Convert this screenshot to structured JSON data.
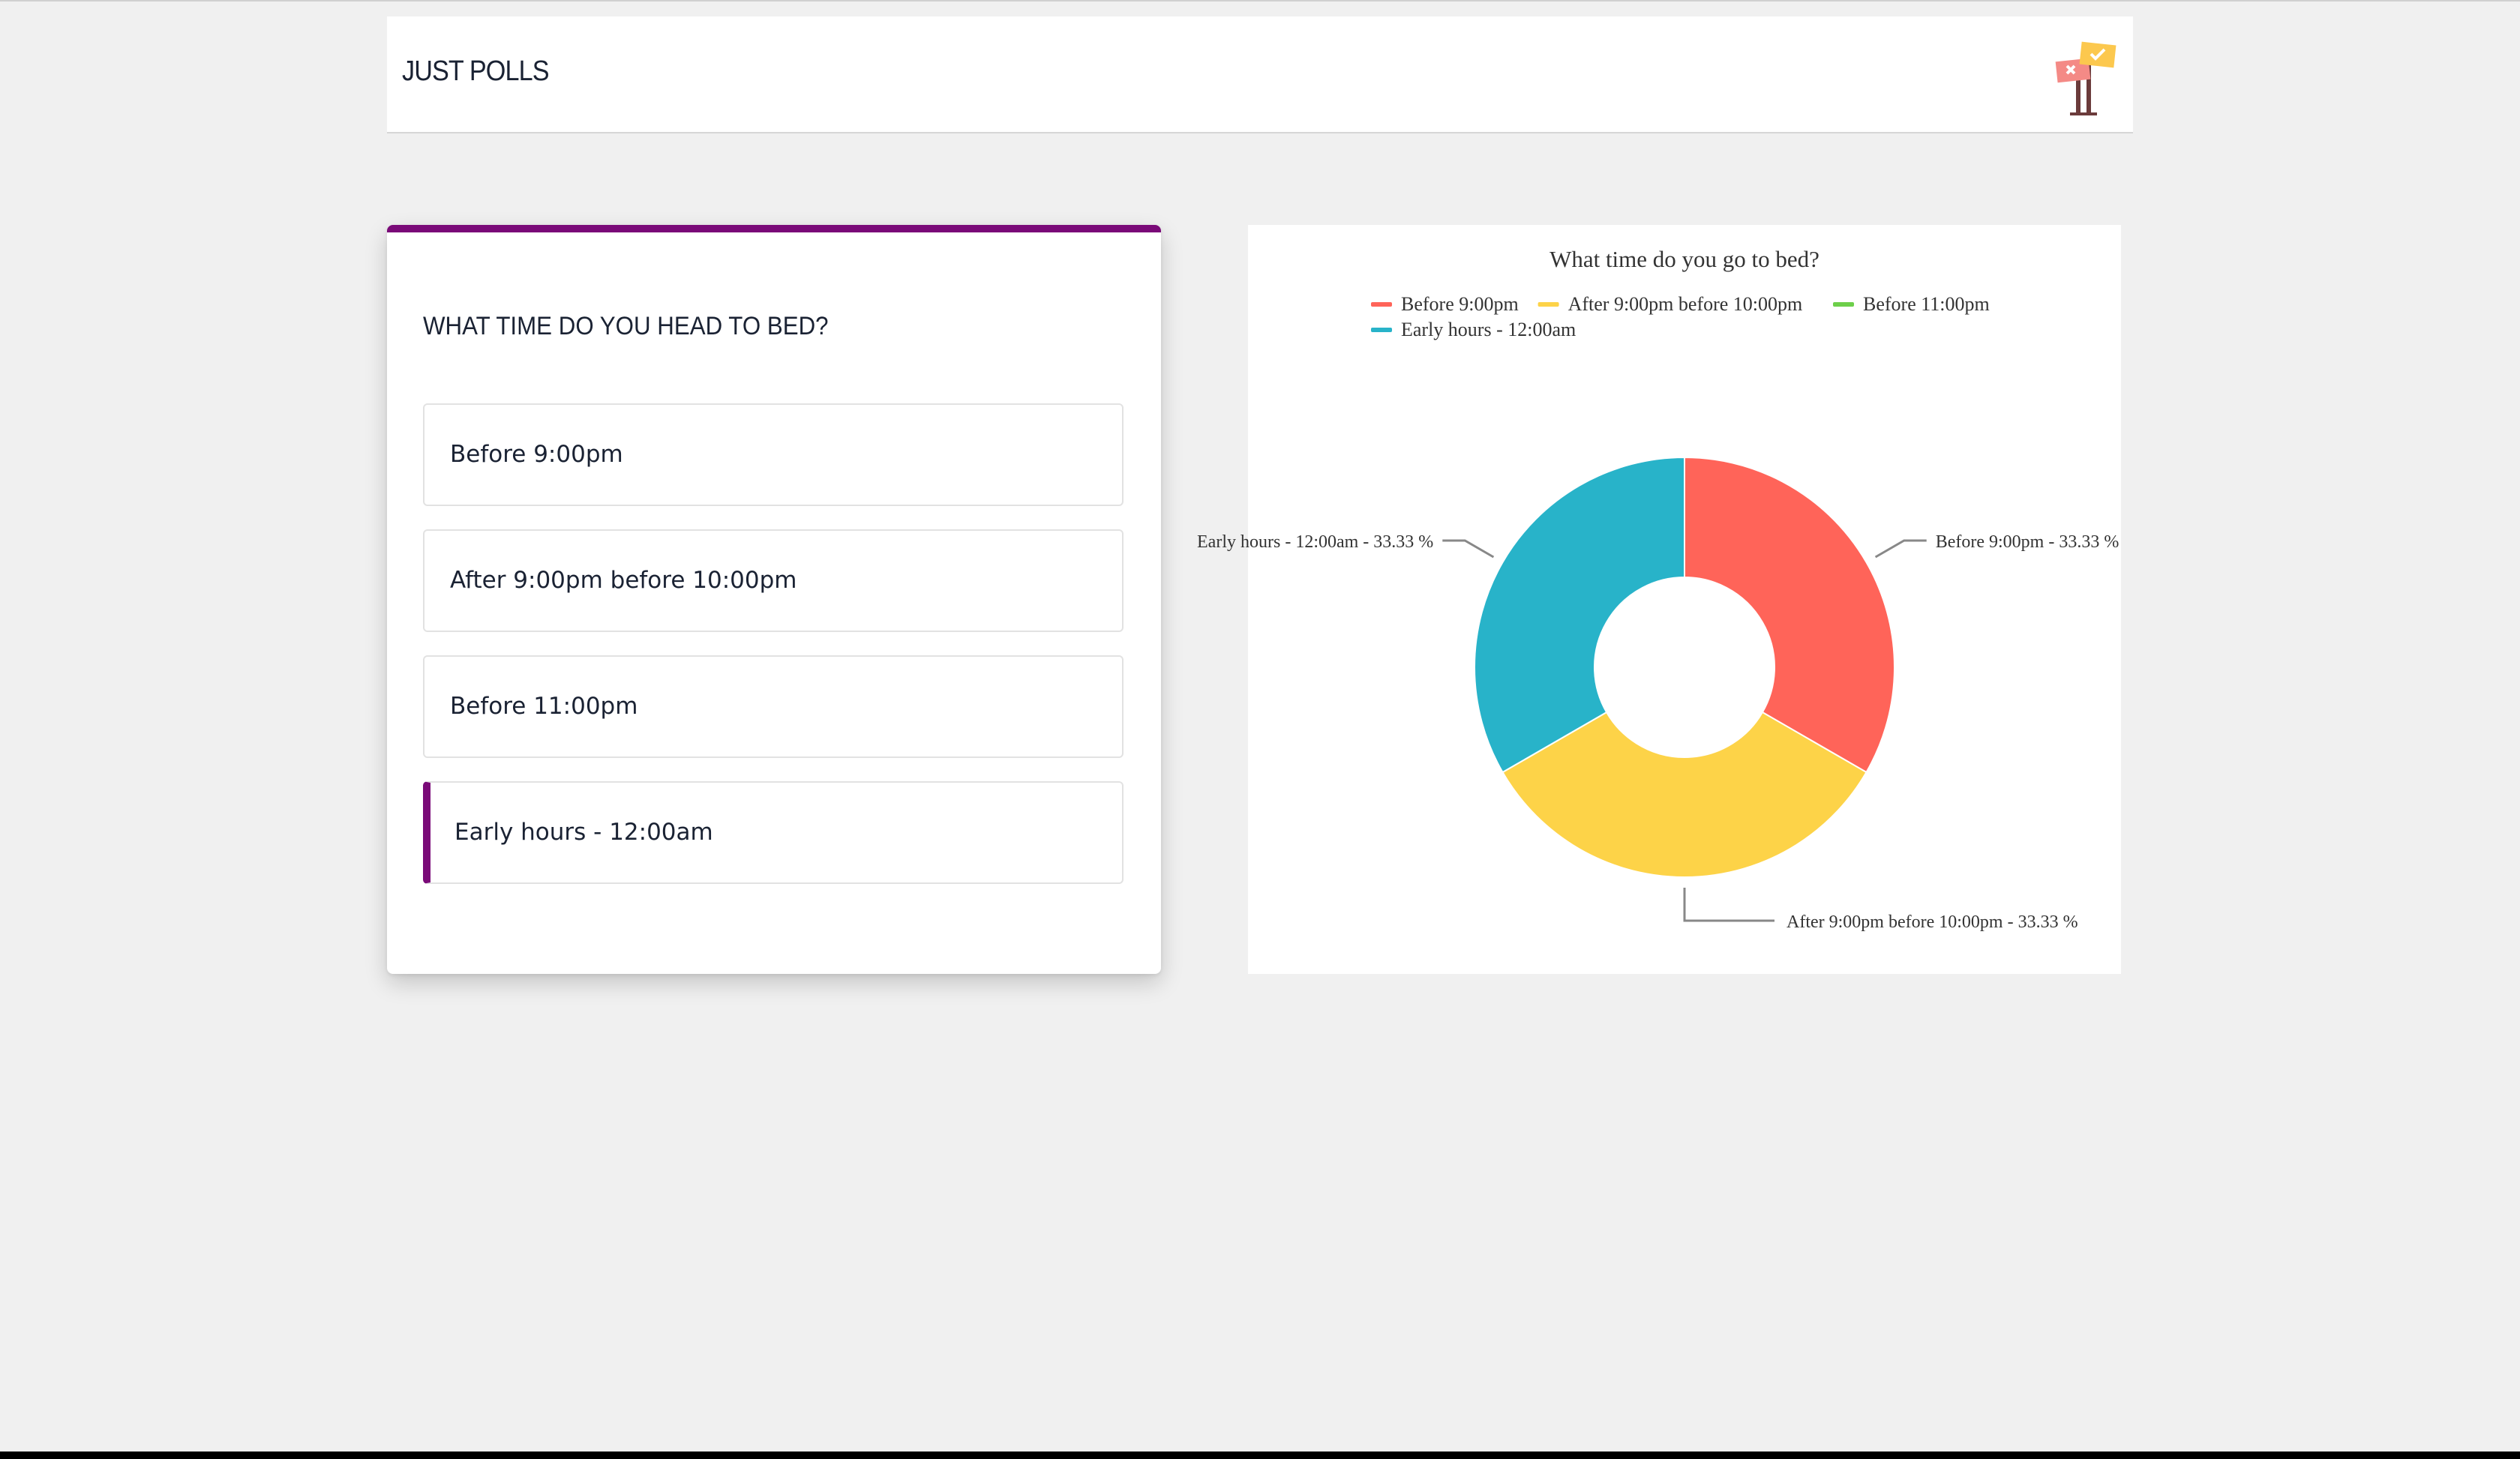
{
  "header": {
    "brand": "JUST POLLS",
    "logo_icon": "polls-signpost-icon"
  },
  "poll": {
    "question": "WHAT TIME DO YOU HEAD TO BED?",
    "accent_color": "#7a0a78",
    "options": [
      {
        "label": "Before 9:00pm",
        "selected": false
      },
      {
        "label": "After 9:00pm before 10:00pm",
        "selected": false
      },
      {
        "label": "Before 11:00pm",
        "selected": false
      },
      {
        "label": "Early hours - 12:00am",
        "selected": true
      }
    ]
  },
  "chart_data": {
    "type": "pie",
    "donut": true,
    "title": "What time do you go to bed?",
    "legend_position": "top",
    "series": [
      {
        "name": "Before 9:00pm",
        "value": 33.33,
        "color": "#ff6459",
        "slice_label": "Before 9:00pm - 33.33 %"
      },
      {
        "name": "After 9:00pm before 10:00pm",
        "value": 33.33,
        "color": "#fdd348",
        "slice_label": "After 9:00pm before 10:00pm - 33.33 %"
      },
      {
        "name": "Before 11:00pm",
        "value": 0,
        "color": "#6dcf4a",
        "slice_label": ""
      },
      {
        "name": "Early hours - 12:00am",
        "value": 33.33,
        "color": "#28b3c9",
        "slice_label": "Early hours - 12:00am - 33.33 %"
      }
    ]
  }
}
